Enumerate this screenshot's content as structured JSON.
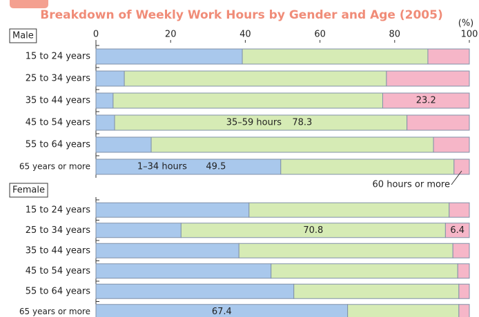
{
  "chart_data": {
    "type": "bar",
    "stacked": true,
    "orientation": "horizontal",
    "title": "Breakdown of Weekly Work Hours by Gender and Age (2005)",
    "xlabel": "(%)",
    "xlim": [
      0,
      100
    ],
    "xticks": [
      0,
      20,
      40,
      60,
      80,
      100
    ],
    "groups": [
      {
        "name": "Male",
        "categories": [
          "15 to 24 years",
          "25 to 34 years",
          "35 to 44 years",
          "45 to 54 years",
          "55 to 64 years",
          "65 years or more"
        ]
      },
      {
        "name": "Female",
        "categories": [
          "15 to 24 years",
          "25 to 34 years",
          "35 to 44 years",
          "45 to 54 years",
          "55 to 64 years",
          "65 years or more"
        ]
      }
    ],
    "series": [
      {
        "name": "1–34 hours",
        "color": "#a9c8ec",
        "values": [
          39.2,
          7.6,
          4.6,
          5.0,
          14.8,
          49.5,
          41.0,
          22.8,
          38.3,
          46.9,
          53.0,
          67.4
        ]
      },
      {
        "name": "35–59 hours",
        "color": "#d6ebb5",
        "values": [
          49.7,
          70.2,
          72.2,
          78.3,
          75.6,
          46.4,
          53.6,
          70.8,
          57.3,
          50.0,
          44.2,
          29.8
        ]
      },
      {
        "name": "60 hours or more",
        "color": "#f6b6c8",
        "values": [
          11.1,
          22.2,
          23.2,
          16.7,
          9.6,
          4.1,
          5.4,
          6.4,
          4.4,
          3.1,
          2.8,
          2.8
        ]
      }
    ]
  }
}
